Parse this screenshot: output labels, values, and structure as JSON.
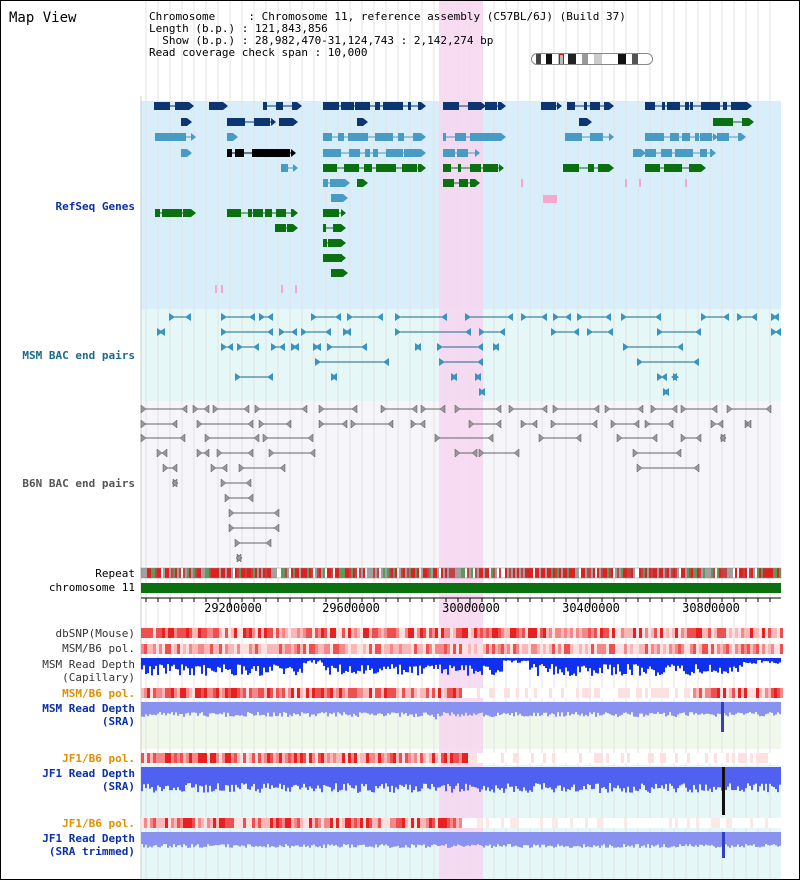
{
  "page": {
    "title": "Map View"
  },
  "info": {
    "chromosome_line": "Chromosome     : Chromosome 11, reference assembly (C57BL/6J) (Build 37)",
    "length_line": "Length (b.p.) : 121,843,856",
    "show_line": "  Show (b.p.) : 28,982,470-31,124,743 : 2,142,274 bp",
    "coverage_line": "Read coverage check span : 10,000"
  },
  "ruler": {
    "ticks": [
      "29200000",
      "29600000",
      "30000000",
      "30400000",
      "30800000"
    ]
  },
  "tracks": {
    "refseq": "RefSeq Genes",
    "msm_bac": "MSM BAC end pairs",
    "b6n_bac": "B6N BAC end pairs",
    "repeat": "Repeat",
    "chromosome": "chromosome 11",
    "dbsnp": "dbSNP(Mouse)",
    "msm_b6_pol_cap": "MSM/B6 pol.",
    "msm_depth_cap": "MSM Read Depth\n(Capillary)",
    "msm_b6_pol_sra": "MSM/B6 pol.",
    "msm_depth_sra": "MSM Read Depth\n(SRA)",
    "jf1_b6_pol": "JF1/B6 pol.",
    "jf1_depth_sra": "JF1 Read Depth\n(SRA)",
    "jf1_b6_pol_trim": "JF1/B6 pol.",
    "jf1_depth_trim": "JF1 Read Depth\n(SRA trimmed)"
  },
  "colors": {
    "refseq_bg": "#d8eefa",
    "msm_bac_bg": "#e6f7f7",
    "b6n_bac_bg": "#f6f6fa",
    "highlight": "#f7d6f0",
    "gene_navy": "#0d3570",
    "gene_blue": "#4a9bc4",
    "gene_green": "#0a7010",
    "gene_black": "#000000",
    "label_blue": "#0a2fa8",
    "label_teal": "#1a6a8a",
    "label_gray": "#555555",
    "label_orange": "#e09000",
    "depth_blue": "#1030f0",
    "depth_light": "#8a92f0"
  }
}
